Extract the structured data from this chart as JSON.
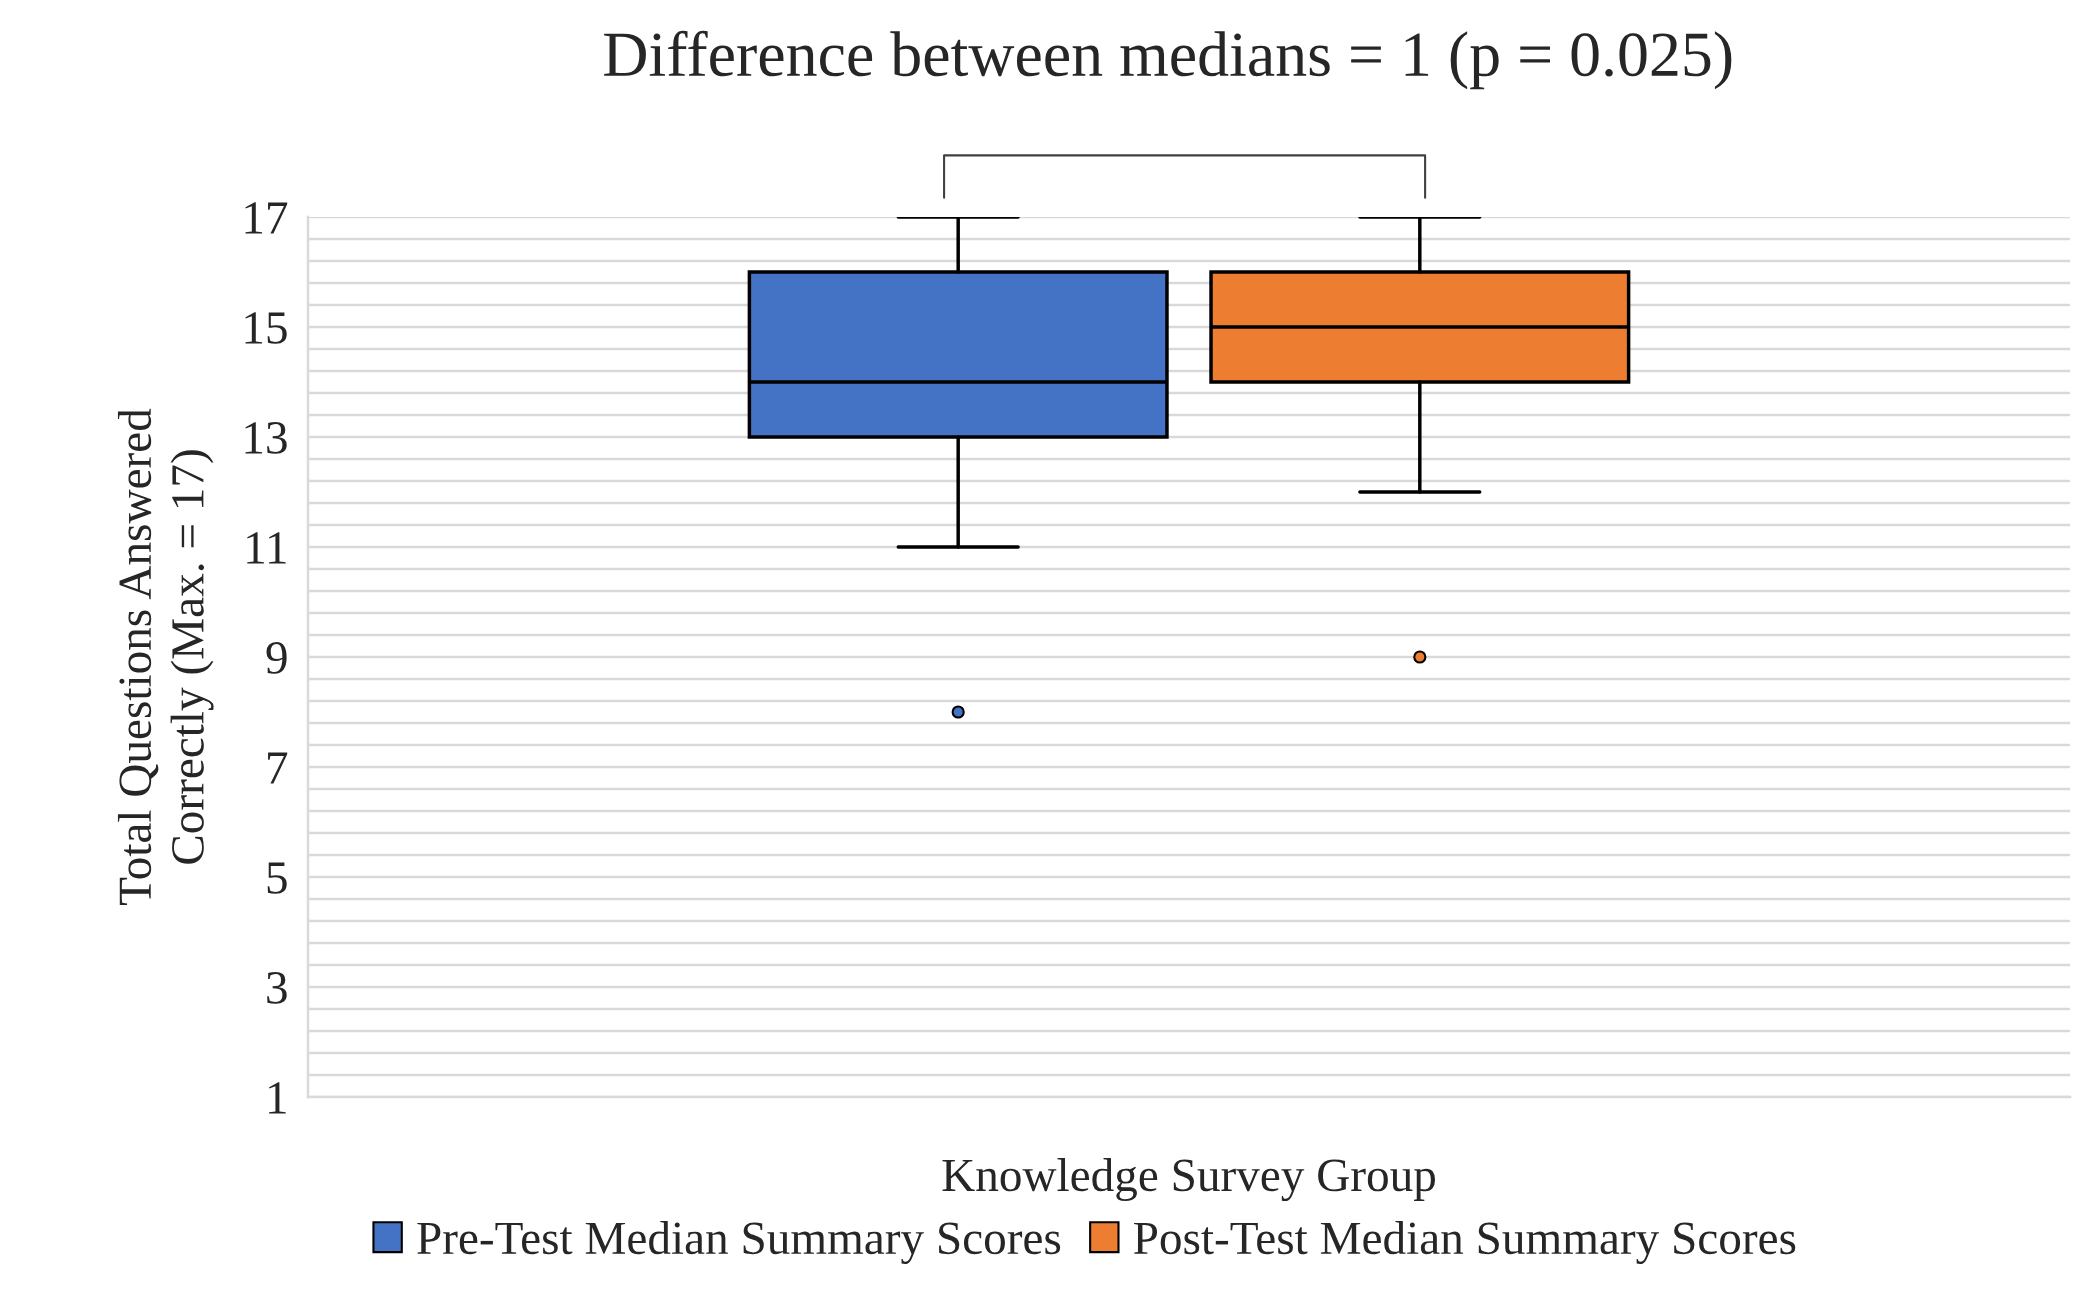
{
  "chart_data": {
    "type": "box",
    "title": "Difference between medians = 1 (p = 0.025)",
    "xlabel": "Knowledge Survey Group",
    "ylabel": "Total Questions Answered\nCorrectly (Max. = 17)",
    "categories": [
      null
    ],
    "series": [
      {
        "name": "Pre-Test Median Summary Scores",
        "color": "#4472c4",
        "boxes": [
          {
            "low": 11,
            "q1": 13,
            "median": 14,
            "q3": 16,
            "high": 17,
            "outliers": [
              8
            ]
          }
        ]
      },
      {
        "name": "Post-Test Median Summary Scores",
        "color": "#ed7d31",
        "boxes": [
          {
            "low": 12,
            "q1": 14,
            "median": 15,
            "q3": 16,
            "high": 17,
            "outliers": [
              9
            ]
          }
        ]
      }
    ],
    "ylim": [
      1,
      17
    ],
    "yticks": [
      1,
      {
        "value": 1.4,
        "label": null
      },
      {
        "value": 1.8,
        "label": null
      },
      {
        "value": 2.2,
        "label": null
      },
      {
        "value": 2.6,
        "label": null
      },
      3,
      {
        "value": 3.4,
        "label": null
      },
      {
        "value": 3.8,
        "label": null
      },
      {
        "value": 4.2,
        "label": null
      },
      {
        "value": 4.6,
        "label": null
      },
      5,
      {
        "value": 5.4,
        "label": null
      },
      {
        "value": 5.8,
        "label": null
      },
      {
        "value": 6.2,
        "label": null
      },
      {
        "value": 6.6,
        "label": null
      },
      7,
      {
        "value": 7.4,
        "label": null
      },
      {
        "value": 7.8,
        "label": null
      },
      {
        "value": 8.2,
        "label": null
      },
      {
        "value": 8.6,
        "label": null
      },
      9,
      {
        "value": 9.4,
        "label": null
      },
      {
        "value": 9.8,
        "label": null
      },
      {
        "value": 10.2,
        "label": null
      },
      {
        "value": 10.6,
        "label": null
      },
      11,
      {
        "value": 11.4,
        "label": null
      },
      {
        "value": 11.8,
        "label": null
      },
      {
        "value": 12.2,
        "label": null
      },
      {
        "value": 12.6,
        "label": null
      },
      13,
      {
        "value": 13.4,
        "label": null
      },
      {
        "value": 13.8,
        "label": null
      },
      {
        "value": 14.2,
        "label": null
      },
      {
        "value": 14.6,
        "label": null
      },
      15,
      {
        "value": 15.4,
        "label": null
      },
      {
        "value": 15.8,
        "label": null
      },
      {
        "value": 16.2,
        "label": null
      },
      {
        "value": 16.6,
        "label": null
      },
      17
    ],
    "grid": "y",
    "legend": "bottom"
  }
}
